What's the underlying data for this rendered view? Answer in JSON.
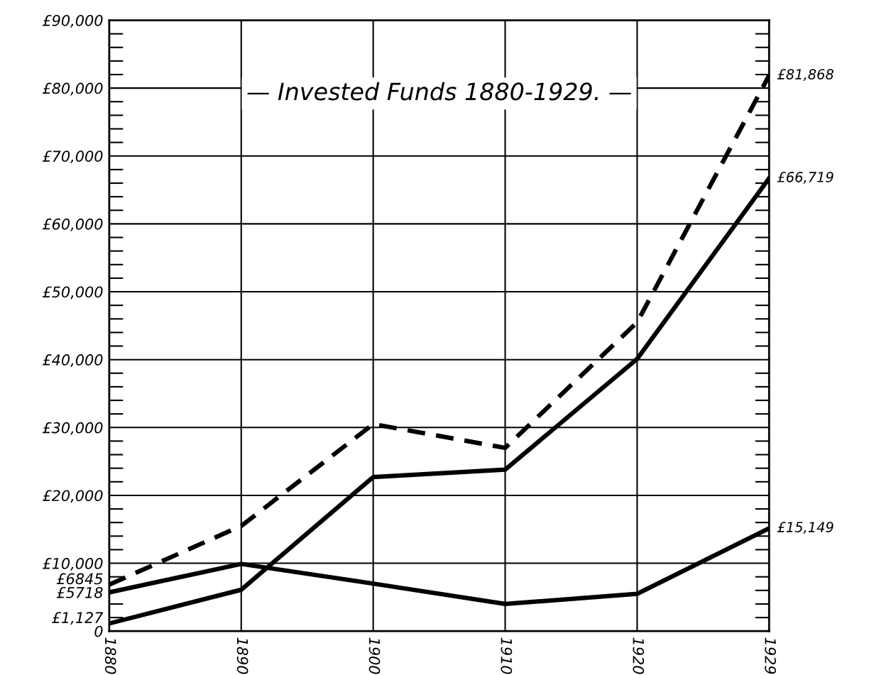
{
  "chart_data": {
    "type": "line",
    "title": "— Invested Funds 1880-1929. —",
    "categories": [
      "1880",
      "1890",
      "1900",
      "1910",
      "1920",
      "1929"
    ],
    "series": [
      {
        "color": "#000000",
        "line_style": "dashed",
        "values": [
          6845,
          15500,
          30500,
          27000,
          45500,
          81868
        ]
      },
      {
        "color": "#000000",
        "line_style": "solid",
        "values": [
          1127,
          6100,
          22700,
          23800,
          40100,
          66719
        ]
      },
      {
        "color": "#000000",
        "line_style": "solid",
        "values": [
          5718,
          9900,
          7000,
          4000,
          5500,
          15149
        ]
      }
    ],
    "ylim": [
      0,
      90000
    ],
    "yticks": [
      {
        "value": 0,
        "label": "0"
      },
      {
        "value": 1127,
        "label": "£1,127"
      },
      {
        "value": 5718,
        "label": "£5718"
      },
      {
        "value": 6845,
        "label": "£6845"
      },
      {
        "value": 10000,
        "label": "£10,000"
      },
      {
        "value": 20000,
        "label": "£20,000"
      },
      {
        "value": 30000,
        "label": "£30,000"
      },
      {
        "value": 40000,
        "label": "£40,000"
      },
      {
        "value": 50000,
        "label": "£50,000"
      },
      {
        "value": 60000,
        "label": "£60,000"
      },
      {
        "value": 70000,
        "label": "£70,000"
      },
      {
        "value": 80000,
        "label": "£80,000"
      },
      {
        "value": 90000,
        "label": "£90,000"
      }
    ],
    "grid": true,
    "annotations": [
      {
        "text": "£81,868",
        "x": "1929",
        "y": 81868
      },
      {
        "text": "£66,719",
        "x": "1929",
        "y": 66719
      },
      {
        "text": "£15,149",
        "x": "1929",
        "y": 15149
      }
    ]
  }
}
